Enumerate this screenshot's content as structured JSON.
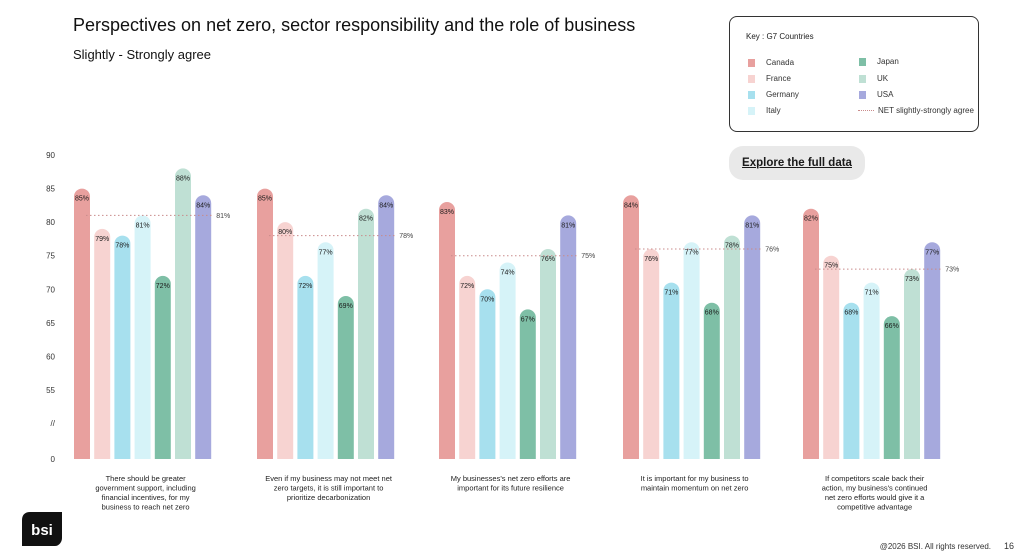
{
  "title": "Perspectives on net zero, sector responsibility and the role of business",
  "subtitle": "Slightly - Strongly agree",
  "legend": {
    "title": "Key : G7 Countries",
    "net_label": "NET slightly-strongly agree"
  },
  "explore_label": "Explore the full data",
  "logo_text": "bsi",
  "footer": "@2026 BSI. All rights reserved.",
  "page_number": "16",
  "colors": {
    "Canada": "#e8a09e",
    "France": "#f7d3d1",
    "Germany": "#a7e0ee",
    "Italy": "#d6f3f8",
    "Japan": "#7ebfa6",
    "UK": "#bfe0d4",
    "USA": "#a6a9dd",
    "net_line": "#c98b8b"
  },
  "chart_data": {
    "type": "bar",
    "y_ticks": [
      "0",
      "//",
      "55",
      "60",
      "65",
      "70",
      "75",
      "80",
      "85",
      "90"
    ],
    "ylim": [
      50,
      90
    ],
    "series_order": [
      "Canada",
      "France",
      "Germany",
      "Italy",
      "Japan",
      "UK",
      "USA"
    ],
    "categories": [
      "There should be greater government support, including financial incentives, for my business to reach net zero",
      "Even if my business may not meet net zero targets, it is still important to prioritize decarbonization",
      "My businesses's net zero efforts are important for its future resilience",
      "It is important for my business to maintain momentum on net zero",
      "If competitors scale back their action, my business's continued net zero efforts would give it a competitive advantage"
    ],
    "series": [
      {
        "name": "Canada",
        "values": [
          85,
          85,
          83,
          84,
          82
        ]
      },
      {
        "name": "France",
        "values": [
          79,
          80,
          72,
          76,
          75
        ]
      },
      {
        "name": "Germany",
        "values": [
          78,
          72,
          70,
          71,
          68
        ]
      },
      {
        "name": "Italy",
        "values": [
          81,
          77,
          74,
          77,
          71
        ]
      },
      {
        "name": "Japan",
        "values": [
          72,
          69,
          67,
          68,
          66
        ]
      },
      {
        "name": "UK",
        "values": [
          88,
          82,
          76,
          78,
          73
        ]
      },
      {
        "name": "USA",
        "values": [
          84,
          84,
          81,
          81,
          77
        ]
      }
    ],
    "net": [
      81,
      78,
      75,
      76,
      73
    ],
    "value_suffix": "%"
  }
}
